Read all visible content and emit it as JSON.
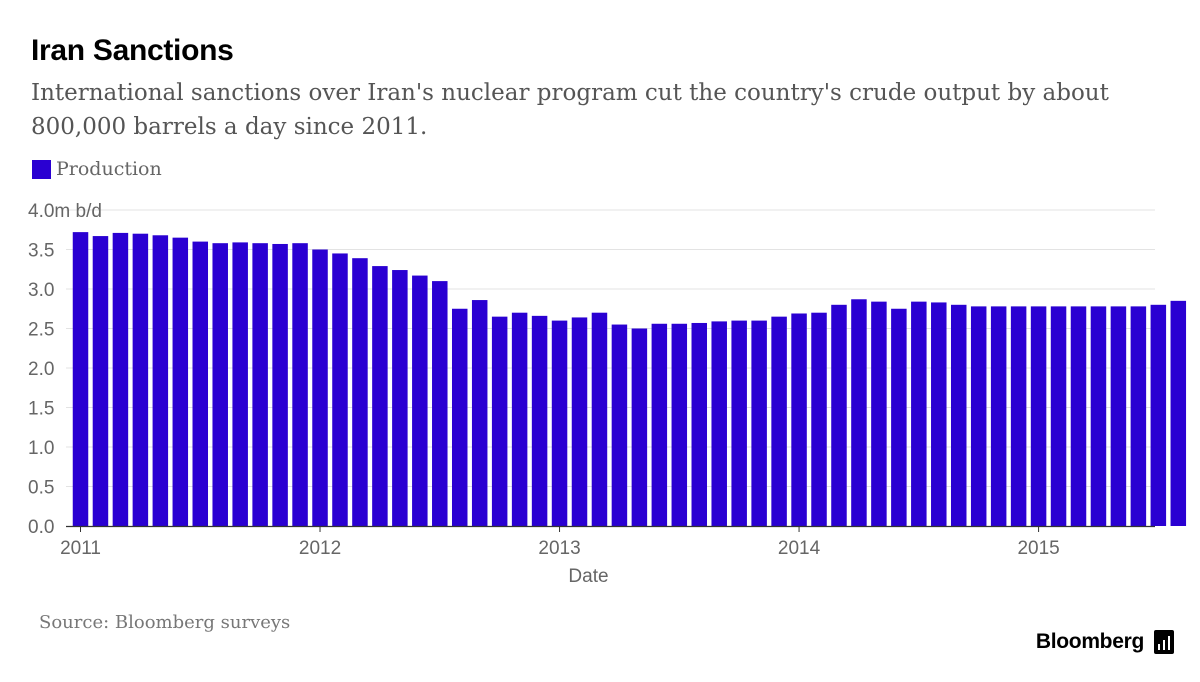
{
  "header": {
    "title": "Iran Sanctions",
    "subtitle": "International sanctions over Iran's nuclear program cut the country's crude output by about 800,000 barrels a day since 2011."
  },
  "legend": {
    "label": "Production",
    "color": "#2a00d2"
  },
  "footer": {
    "source": "Source: Bloomberg surveys",
    "brand": "Bloomberg",
    "brand_icon": "bloomberg-terminal-icon"
  },
  "chart_data": {
    "type": "bar",
    "xlabel": "Date",
    "ylabel": "",
    "y_unit_label": "4.0m b/d",
    "ylim": [
      0,
      4.0
    ],
    "yticks": [
      0.0,
      0.5,
      1.0,
      1.5,
      2.0,
      2.5,
      3.0,
      3.5,
      4.0
    ],
    "ytick_labels": [
      "0.0",
      "0.5",
      "1.0",
      "1.5",
      "2.0",
      "2.5",
      "3.0",
      "3.5",
      "4.0m b/d"
    ],
    "xtick_labels": [
      "2011",
      "2012",
      "2013",
      "2014",
      "2015"
    ],
    "grid": true,
    "start": "2011-01",
    "frequency": "monthly",
    "series": [
      {
        "name": "Production",
        "color": "#2a00d2",
        "values": [
          3.72,
          3.67,
          3.71,
          3.7,
          3.68,
          3.65,
          3.6,
          3.58,
          3.59,
          3.58,
          3.57,
          3.58,
          3.5,
          3.45,
          3.39,
          3.29,
          3.24,
          3.17,
          3.1,
          2.75,
          2.86,
          2.65,
          2.7,
          2.66,
          2.6,
          2.64,
          2.7,
          2.55,
          2.5,
          2.56,
          2.56,
          2.57,
          2.59,
          2.6,
          2.6,
          2.65,
          2.69,
          2.7,
          2.8,
          2.87,
          2.84,
          2.75,
          2.84,
          2.83,
          2.8,
          2.78,
          2.78,
          2.78,
          2.78,
          2.78,
          2.78,
          2.78,
          2.78,
          2.78,
          2.8,
          2.85
        ]
      }
    ]
  }
}
